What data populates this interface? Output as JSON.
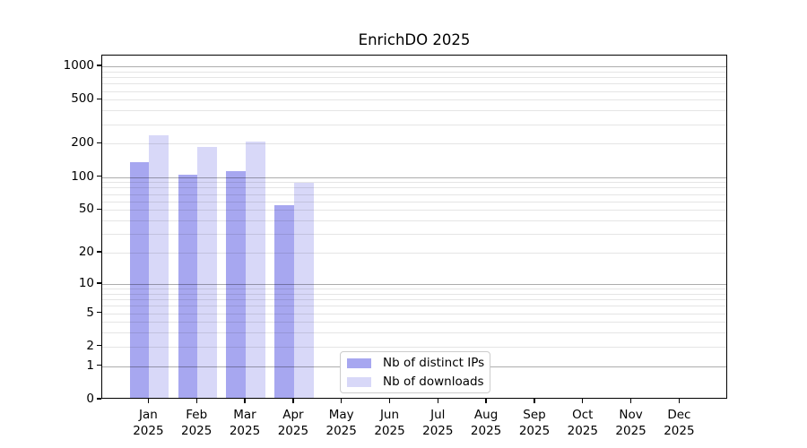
{
  "chart_data": {
    "type": "bar",
    "title": "EnrichDO 2025",
    "categories": [
      "Jan 2025",
      "Feb 2025",
      "Mar 2025",
      "Apr 2025",
      "May 2025",
      "Jun 2025",
      "Jul 2025",
      "Aug 2025",
      "Sep 2025",
      "Oct 2025",
      "Nov 2025",
      "Dec 2025"
    ],
    "series": [
      {
        "name": "Nb of distinct IPs",
        "color": "#a7a7f0",
        "values": [
          132,
          101,
          108,
          53,
          null,
          null,
          null,
          null,
          null,
          null,
          null,
          null
        ]
      },
      {
        "name": "Nb of downloads",
        "color": "#d8d8f8",
        "values": [
          232,
          180,
          201,
          85,
          null,
          null,
          null,
          null,
          null,
          null,
          null,
          null
        ]
      }
    ],
    "xlabel": "",
    "ylabel": "",
    "yscale": "log1p",
    "ylim": [
      0,
      1250
    ],
    "yticks": [
      1000,
      500,
      200,
      100,
      50,
      20,
      10,
      5,
      2,
      1,
      0
    ],
    "grid": "on",
    "grid_major": [
      1,
      10,
      100,
      1000
    ],
    "grid_minor": [
      2,
      3,
      4,
      5,
      6,
      7,
      8,
      9,
      20,
      30,
      40,
      50,
      60,
      70,
      80,
      90,
      200,
      300,
      400,
      500,
      600,
      700,
      800,
      900
    ],
    "grid_major_color": "rgba(0,0,0,0.32)",
    "grid_minor_color": "rgba(0,0,0,0.10)",
    "legend_position": "lower center"
  }
}
